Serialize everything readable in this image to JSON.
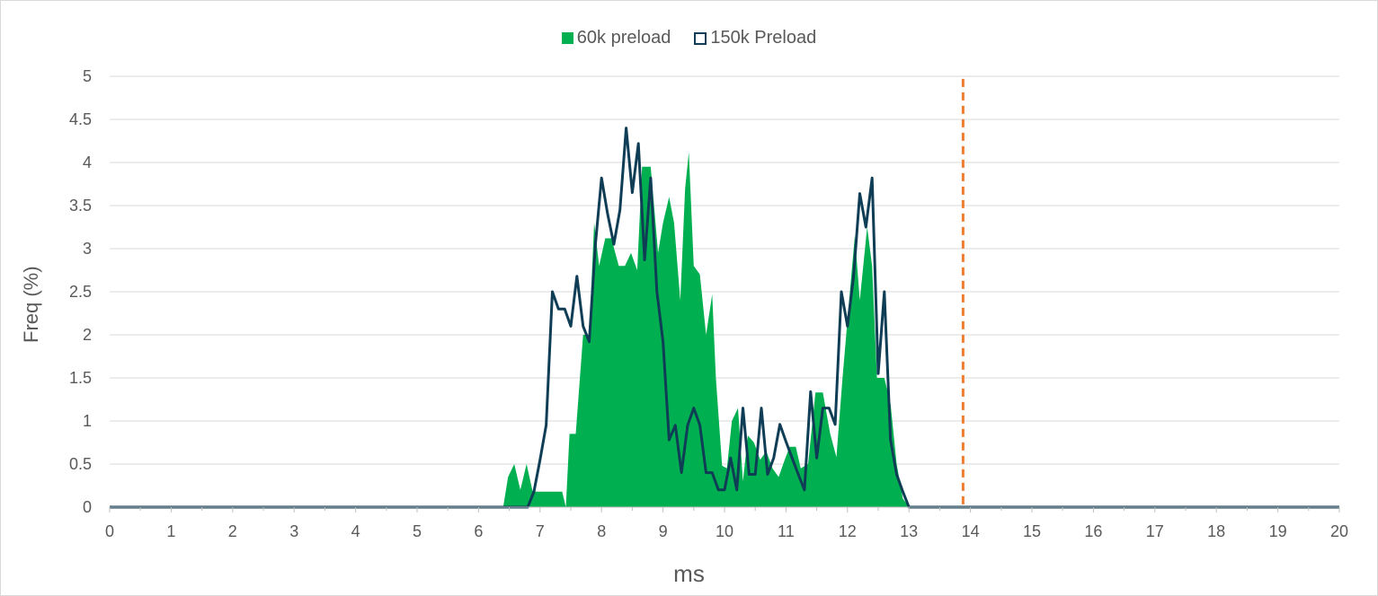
{
  "chart_data": {
    "type": "area",
    "xlabel": "ms",
    "ylabel": "Freq (%)",
    "xlim": [
      0,
      20
    ],
    "ylim": [
      0,
      5
    ],
    "x_ticks": [
      "0",
      "1",
      "2",
      "3",
      "4",
      "5",
      "6",
      "7",
      "8",
      "9",
      "10",
      "11",
      "12",
      "13",
      "14",
      "15",
      "16",
      "17",
      "18",
      "19",
      "20"
    ],
    "y_ticks": [
      "0",
      "0.5",
      "1",
      "1.5",
      "2",
      "2.5",
      "3",
      "3.5",
      "4",
      "4.5",
      "5"
    ],
    "grid": true,
    "legend_position": "top",
    "vertical_line": {
      "x": 13.88,
      "color": "#ed7d31",
      "style": "dashed"
    },
    "series": [
      {
        "name": "60k preload",
        "kind": "area",
        "color": "#00b050",
        "points": [
          [
            0,
            0
          ],
          [
            6.4,
            0
          ],
          [
            6.48,
            0.35
          ],
          [
            6.58,
            0.5
          ],
          [
            6.68,
            0.2
          ],
          [
            6.78,
            0.5
          ],
          [
            6.88,
            0.18
          ],
          [
            7.0,
            0.18
          ],
          [
            7.2,
            0.18
          ],
          [
            7.36,
            0.18
          ],
          [
            7.42,
            0.0
          ],
          [
            7.48,
            0.85
          ],
          [
            7.58,
            0.85
          ],
          [
            7.7,
            2.0
          ],
          [
            7.8,
            2.0
          ],
          [
            7.88,
            3.3
          ],
          [
            7.96,
            2.8
          ],
          [
            8.06,
            3.12
          ],
          [
            8.16,
            3.12
          ],
          [
            8.28,
            2.8
          ],
          [
            8.38,
            2.8
          ],
          [
            8.48,
            2.95
          ],
          [
            8.58,
            2.75
          ],
          [
            8.66,
            3.95
          ],
          [
            8.8,
            3.95
          ],
          [
            8.92,
            2.95
          ],
          [
            9.0,
            3.3
          ],
          [
            9.1,
            3.6
          ],
          [
            9.18,
            3.3
          ],
          [
            9.28,
            2.4
          ],
          [
            9.36,
            3.7
          ],
          [
            9.42,
            4.12
          ],
          [
            9.5,
            2.8
          ],
          [
            9.6,
            2.7
          ],
          [
            9.7,
            2.0
          ],
          [
            9.8,
            2.47
          ],
          [
            9.86,
            1.5
          ],
          [
            9.96,
            0.48
          ],
          [
            10.04,
            0.45
          ],
          [
            10.12,
            1.0
          ],
          [
            10.22,
            1.15
          ],
          [
            10.3,
            0.3
          ],
          [
            10.38,
            0.83
          ],
          [
            10.48,
            0.75
          ],
          [
            10.58,
            0.55
          ],
          [
            10.68,
            0.65
          ],
          [
            10.78,
            0.45
          ],
          [
            10.88,
            0.35
          ],
          [
            10.98,
            0.55
          ],
          [
            11.06,
            0.7
          ],
          [
            11.16,
            0.7
          ],
          [
            11.24,
            0.45
          ],
          [
            11.36,
            0.5
          ],
          [
            11.48,
            1.33
          ],
          [
            11.6,
            1.33
          ],
          [
            11.72,
            0.85
          ],
          [
            11.82,
            0.58
          ],
          [
            11.92,
            1.5
          ],
          [
            12.04,
            2.5
          ],
          [
            12.12,
            3.15
          ],
          [
            12.2,
            2.4
          ],
          [
            12.32,
            3.25
          ],
          [
            12.4,
            2.8
          ],
          [
            12.48,
            1.5
          ],
          [
            12.6,
            1.5
          ],
          [
            12.7,
            1.2
          ],
          [
            12.8,
            0.5
          ],
          [
            12.9,
            0.1
          ],
          [
            13.0,
            0
          ],
          [
            20,
            0
          ]
        ]
      },
      {
        "name": "150k Preload",
        "kind": "line",
        "color": "#0e3d55",
        "points": [
          [
            0,
            0
          ],
          [
            6.8,
            0
          ],
          [
            6.9,
            0.18
          ],
          [
            7.0,
            0.55
          ],
          [
            7.1,
            0.95
          ],
          [
            7.2,
            2.5
          ],
          [
            7.3,
            2.3
          ],
          [
            7.4,
            2.3
          ],
          [
            7.5,
            2.1
          ],
          [
            7.6,
            2.68
          ],
          [
            7.7,
            2.1
          ],
          [
            7.8,
            1.92
          ],
          [
            7.9,
            3.05
          ],
          [
            8.0,
            3.82
          ],
          [
            8.1,
            3.4
          ],
          [
            8.2,
            3.05
          ],
          [
            8.3,
            3.45
          ],
          [
            8.4,
            4.4
          ],
          [
            8.5,
            3.65
          ],
          [
            8.6,
            4.22
          ],
          [
            8.7,
            2.87
          ],
          [
            8.8,
            3.82
          ],
          [
            8.9,
            2.5
          ],
          [
            9.0,
            1.92
          ],
          [
            9.1,
            0.78
          ],
          [
            9.2,
            0.95
          ],
          [
            9.3,
            0.4
          ],
          [
            9.4,
            0.95
          ],
          [
            9.5,
            1.15
          ],
          [
            9.6,
            0.95
          ],
          [
            9.7,
            0.4
          ],
          [
            9.8,
            0.4
          ],
          [
            9.9,
            0.2
          ],
          [
            10.0,
            0.2
          ],
          [
            10.1,
            0.57
          ],
          [
            10.2,
            0.2
          ],
          [
            10.3,
            1.15
          ],
          [
            10.4,
            0.38
          ],
          [
            10.5,
            0.38
          ],
          [
            10.6,
            1.15
          ],
          [
            10.7,
            0.38
          ],
          [
            10.8,
            0.57
          ],
          [
            10.9,
            0.96
          ],
          [
            11.0,
            0.76
          ],
          [
            11.1,
            0.57
          ],
          [
            11.2,
            0.38
          ],
          [
            11.3,
            0.2
          ],
          [
            11.4,
            1.34
          ],
          [
            11.5,
            0.57
          ],
          [
            11.6,
            1.15
          ],
          [
            11.7,
            1.15
          ],
          [
            11.8,
            0.96
          ],
          [
            11.9,
            2.5
          ],
          [
            12.0,
            2.1
          ],
          [
            12.1,
            2.68
          ],
          [
            12.2,
            3.64
          ],
          [
            12.3,
            3.25
          ],
          [
            12.4,
            3.82
          ],
          [
            12.5,
            1.55
          ],
          [
            12.6,
            2.5
          ],
          [
            12.7,
            0.78
          ],
          [
            12.8,
            0.38
          ],
          [
            12.9,
            0.18
          ],
          [
            13.0,
            0
          ],
          [
            20,
            0
          ]
        ]
      }
    ]
  }
}
